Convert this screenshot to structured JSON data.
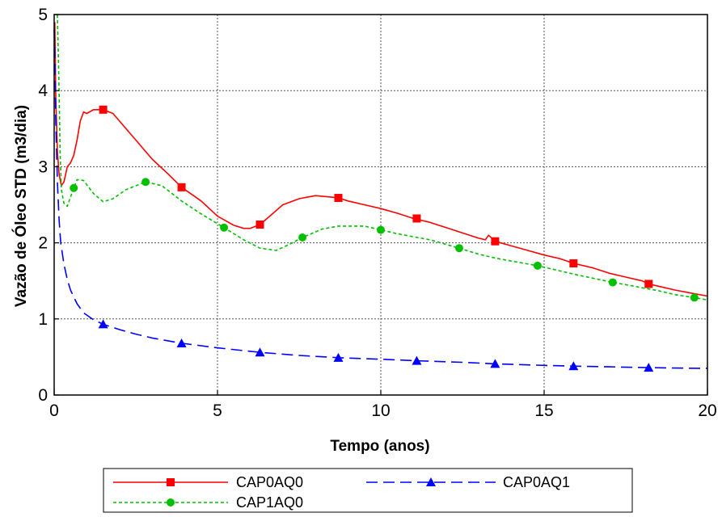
{
  "chart_data": {
    "type": "line",
    "xlabel": "Tempo (anos)",
    "ylabel": "Vazão de Óleo STD (m3/dia)",
    "xlim": [
      0,
      20
    ],
    "ylim": [
      0,
      5
    ],
    "x_ticks": [
      "0",
      "5",
      "10",
      "15",
      "20"
    ],
    "y_ticks": [
      "0",
      "1",
      "2",
      "3",
      "4",
      "5"
    ],
    "grid": true,
    "legend_position": "bottom",
    "series": [
      {
        "name": "CAP0AQ0",
        "color": "#ff0000",
        "line_style": "solid",
        "marker": "square",
        "x": [
          0.02,
          0.05,
          0.1,
          0.15,
          0.22,
          0.3,
          0.4,
          0.5,
          0.6,
          0.7,
          0.8,
          0.9,
          1.0,
          1.2,
          1.5,
          1.8,
          2.0,
          2.5,
          3.0,
          3.5,
          3.9,
          4.5,
          5.0,
          5.5,
          5.8,
          6.0,
          6.3,
          6.6,
          7.0,
          7.5,
          8.0,
          8.5,
          8.7,
          9.0,
          9.5,
          10.0,
          10.5,
          11.0,
          11.5,
          12.0,
          12.5,
          13.0,
          13.2,
          13.3,
          13.5,
          14.0,
          14.5,
          15.0,
          15.5,
          15.9,
          16.5,
          17.0,
          17.5,
          18.0,
          18.2,
          18.5,
          19.0,
          19.5,
          20.0
        ],
        "y": [
          4.9,
          3.9,
          3.2,
          2.9,
          2.75,
          2.8,
          3.0,
          3.05,
          3.15,
          3.35,
          3.6,
          3.72,
          3.7,
          3.75,
          3.75,
          3.7,
          3.6,
          3.35,
          3.1,
          2.9,
          2.73,
          2.55,
          2.35,
          2.23,
          2.19,
          2.19,
          2.24,
          2.35,
          2.5,
          2.58,
          2.62,
          2.6,
          2.59,
          2.55,
          2.5,
          2.45,
          2.39,
          2.32,
          2.27,
          2.2,
          2.13,
          2.06,
          2.04,
          2.1,
          2.02,
          1.96,
          1.9,
          1.84,
          1.79,
          1.73,
          1.67,
          1.6,
          1.55,
          1.5,
          1.46,
          1.43,
          1.38,
          1.34,
          1.3
        ],
        "marker_x": [
          1.5,
          3.9,
          6.3,
          8.7,
          11.1,
          13.5,
          15.9,
          18.2
        ],
        "marker_y": [
          3.75,
          2.73,
          2.24,
          2.59,
          2.32,
          2.02,
          1.73,
          1.46
        ]
      },
      {
        "name": "CAP0AQ1",
        "color": "#0000ff",
        "line_style": "dashed",
        "marker": "triangle",
        "x": [
          0.0,
          0.02,
          0.05,
          0.1,
          0.15,
          0.2,
          0.3,
          0.4,
          0.5,
          0.7,
          0.9,
          1.2,
          1.5,
          2.0,
          2.5,
          3.0,
          3.9,
          5.0,
          6.3,
          7.5,
          8.7,
          10.0,
          11.1,
          12.5,
          13.5,
          15.0,
          15.9,
          17.0,
          18.2,
          19.0,
          20.0
        ],
        "y": [
          4.8,
          4.5,
          3.6,
          2.8,
          2.3,
          2.0,
          1.72,
          1.52,
          1.38,
          1.2,
          1.08,
          0.99,
          0.93,
          0.86,
          0.8,
          0.75,
          0.68,
          0.62,
          0.56,
          0.52,
          0.49,
          0.47,
          0.45,
          0.43,
          0.41,
          0.39,
          0.38,
          0.37,
          0.36,
          0.355,
          0.35
        ],
        "marker_x": [
          1.5,
          3.9,
          6.3,
          8.7,
          11.1,
          13.5,
          15.9,
          18.2
        ],
        "marker_y": [
          0.93,
          0.68,
          0.56,
          0.49,
          0.45,
          0.41,
          0.38,
          0.36
        ]
      },
      {
        "name": "CAP1AQ0",
        "color": "#00c000",
        "line_style": "dotted",
        "marker": "circle",
        "x": [
          0.1,
          0.15,
          0.18,
          0.22,
          0.3,
          0.4,
          0.5,
          0.6,
          0.7,
          0.9,
          1.2,
          1.5,
          1.8,
          2.2,
          2.8,
          3.3,
          3.9,
          4.5,
          5.2,
          5.8,
          6.3,
          6.8,
          7.2,
          7.6,
          8.2,
          8.7,
          9.5,
          10.0,
          10.5,
          11.0,
          11.5,
          12.4,
          13.0,
          13.5,
          14.0,
          14.8,
          15.5,
          16.0,
          17.1,
          17.5,
          18.0,
          18.5,
          19.0,
          19.6,
          20.0
        ],
        "y": [
          5.0,
          4.0,
          3.2,
          2.7,
          2.52,
          2.48,
          2.6,
          2.72,
          2.83,
          2.82,
          2.65,
          2.54,
          2.58,
          2.7,
          2.8,
          2.75,
          2.55,
          2.38,
          2.2,
          2.04,
          1.93,
          1.9,
          1.98,
          2.07,
          2.18,
          2.22,
          2.22,
          2.17,
          2.12,
          2.08,
          2.04,
          1.93,
          1.85,
          1.8,
          1.76,
          1.7,
          1.63,
          1.58,
          1.48,
          1.45,
          1.41,
          1.37,
          1.32,
          1.28,
          1.25
        ],
        "marker_x": [
          0.6,
          2.8,
          5.2,
          7.6,
          10.0,
          12.4,
          14.8,
          17.1,
          19.6
        ],
        "marker_y": [
          2.72,
          2.8,
          2.2,
          2.07,
          2.17,
          1.93,
          1.7,
          1.48,
          1.28
        ]
      }
    ]
  }
}
